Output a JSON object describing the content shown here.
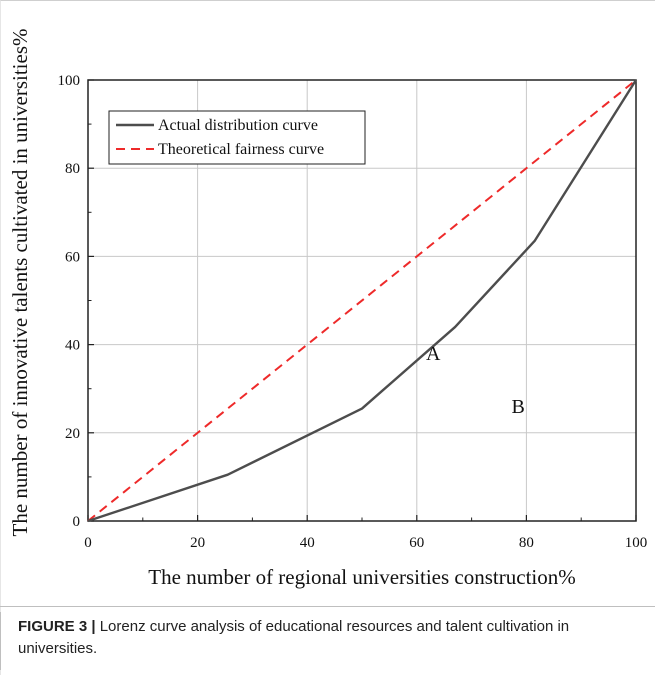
{
  "chart_data": {
    "type": "line",
    "xlabel": "The number of regional universities construction%",
    "ylabel": "The number of innovative talents cultivated in universities%",
    "xlim": [
      0,
      100
    ],
    "ylim": [
      0,
      100
    ],
    "xticks": [
      "0",
      "20",
      "40",
      "60",
      "80",
      "100"
    ],
    "yticks": [
      "0",
      "20",
      "40",
      "60",
      "80",
      "100"
    ],
    "grid": true,
    "legend_position": "top-left",
    "series": [
      {
        "name": "Actual distribution curve",
        "color": "#4d4d4d",
        "style": "solid",
        "x": [
          0,
          25.5,
          50,
          67,
          81.5,
          100
        ],
        "y": [
          0,
          10.5,
          25.5,
          44,
          63.5,
          100
        ]
      },
      {
        "name": "Theoretical fairness curve",
        "color": "#ee2a2a",
        "style": "dashed",
        "x": [
          0,
          100
        ],
        "y": [
          0,
          100
        ]
      }
    ],
    "annotations": [
      {
        "text": "A",
        "x": 63,
        "y": 36.5
      },
      {
        "text": "B",
        "x": 78.5,
        "y": 24.5
      }
    ]
  },
  "caption": {
    "label": "FIGURE 3 |",
    "text": " Lorenz curve analysis of educational resources and talent cultivation in universities."
  }
}
